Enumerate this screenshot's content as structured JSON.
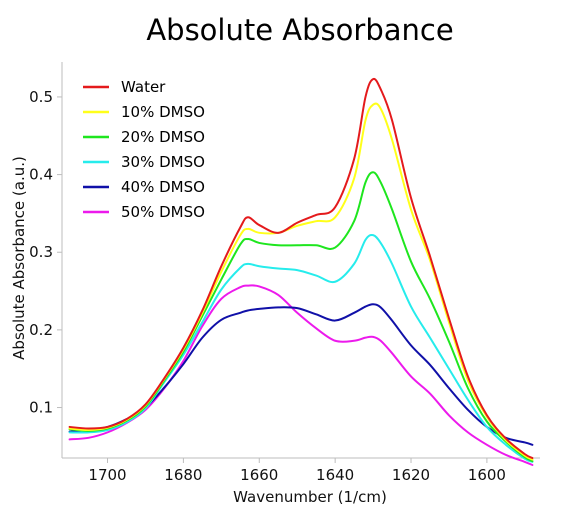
{
  "chart_data": {
    "type": "line",
    "title": "Absolute Absorbance",
    "xlabel": "Wavenumber (1/cm)",
    "ylabel": "Absolute Absorbance (a.u.)",
    "xlim": [
      1712,
      1586
    ],
    "ylim": [
      0.035,
      0.545
    ],
    "x_reversed": true,
    "xticks": [
      1700,
      1680,
      1660,
      1640,
      1620,
      1600
    ],
    "yticks": [
      0.1,
      0.2,
      0.3,
      0.4,
      0.5
    ],
    "ytick_labels": [
      "0.1",
      "0.2",
      "0.3",
      "0.4",
      "0.5"
    ],
    "legend_position": "top-left",
    "grid": false,
    "x": [
      1710,
      1705,
      1700,
      1695,
      1690,
      1685,
      1680,
      1675,
      1670,
      1665,
      1663,
      1660,
      1655,
      1650,
      1645,
      1640,
      1635,
      1632,
      1630,
      1628,
      1625,
      1620,
      1615,
      1610,
      1605,
      1600,
      1595,
      1590,
      1588
    ],
    "series": [
      {
        "name": "Water",
        "color": "#e41a1c",
        "values": [
          0.075,
          0.073,
          0.075,
          0.085,
          0.104,
          0.138,
          0.177,
          0.225,
          0.282,
          0.332,
          0.345,
          0.335,
          0.325,
          0.338,
          0.348,
          0.358,
          0.42,
          0.5,
          0.523,
          0.51,
          0.47,
          0.37,
          0.295,
          0.215,
          0.14,
          0.09,
          0.06,
          0.04,
          0.035
        ]
      },
      {
        "name": "10% DMSO",
        "color": "#ffff1a",
        "values": [
          0.073,
          0.071,
          0.074,
          0.084,
          0.103,
          0.137,
          0.175,
          0.222,
          0.275,
          0.322,
          0.33,
          0.325,
          0.325,
          0.334,
          0.34,
          0.345,
          0.395,
          0.47,
          0.49,
          0.485,
          0.445,
          0.355,
          0.29,
          0.21,
          0.135,
          0.088,
          0.058,
          0.038,
          0.033
        ]
      },
      {
        "name": "20% DMSO",
        "color": "#1ee61e",
        "values": [
          0.072,
          0.07,
          0.073,
          0.083,
          0.101,
          0.135,
          0.172,
          0.218,
          0.265,
          0.31,
          0.317,
          0.312,
          0.309,
          0.309,
          0.309,
          0.306,
          0.34,
          0.39,
          0.403,
          0.39,
          0.355,
          0.288,
          0.24,
          0.185,
          0.125,
          0.082,
          0.056,
          0.036,
          0.031
        ]
      },
      {
        "name": "30% DMSO",
        "color": "#26ecec",
        "values": [
          0.068,
          0.068,
          0.071,
          0.081,
          0.099,
          0.133,
          0.168,
          0.21,
          0.252,
          0.28,
          0.285,
          0.282,
          0.279,
          0.277,
          0.27,
          0.262,
          0.285,
          0.316,
          0.322,
          0.312,
          0.285,
          0.23,
          0.19,
          0.15,
          0.11,
          0.075,
          0.052,
          0.034,
          0.03
        ]
      },
      {
        "name": "40% DMSO",
        "color": "#1010a8",
        "values": [
          0.069,
          0.071,
          0.075,
          0.085,
          0.1,
          0.126,
          0.156,
          0.19,
          0.213,
          0.222,
          0.225,
          0.227,
          0.229,
          0.228,
          0.22,
          0.212,
          0.222,
          0.23,
          0.233,
          0.229,
          0.212,
          0.18,
          0.155,
          0.125,
          0.097,
          0.075,
          0.061,
          0.055,
          0.052
        ]
      },
      {
        "name": "50% DMSO",
        "color": "#ec1aec",
        "values": [
          0.059,
          0.061,
          0.068,
          0.08,
          0.097,
          0.125,
          0.16,
          0.205,
          0.24,
          0.255,
          0.257,
          0.256,
          0.245,
          0.222,
          0.202,
          0.186,
          0.186,
          0.19,
          0.191,
          0.186,
          0.17,
          0.14,
          0.118,
          0.09,
          0.068,
          0.052,
          0.039,
          0.03,
          0.026
        ]
      }
    ]
  }
}
